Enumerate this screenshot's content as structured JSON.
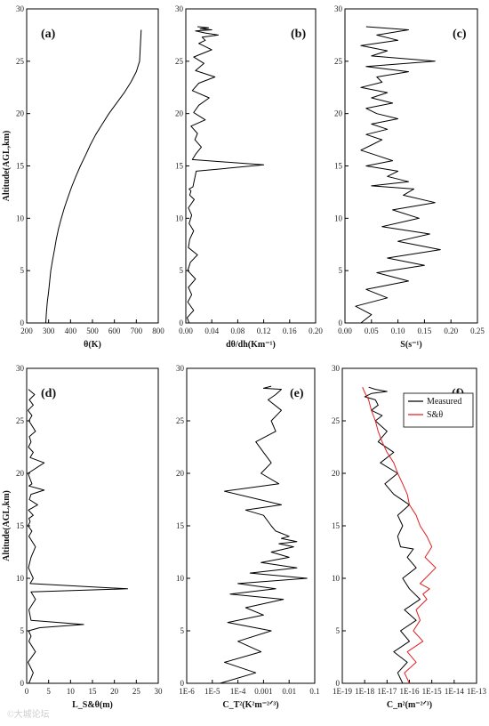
{
  "chart_data": [
    {
      "id": "a",
      "type": "line",
      "panel_label": "(a)",
      "xlabel": "θ(K)",
      "ylabel": "Altitude(AGL,km)",
      "xlim": [
        200,
        800
      ],
      "ylim": [
        0,
        30
      ],
      "xticks": [
        "200",
        "300",
        "400",
        "500",
        "600",
        "700",
        "800"
      ],
      "yticks": [
        "0",
        "5",
        "10",
        "15",
        "20",
        "25",
        "30"
      ],
      "series": [
        {
          "color": "#000000",
          "x": [
            287,
            290,
            294,
            300,
            305,
            310,
            318,
            327,
            335,
            345,
            358,
            372,
            388,
            405,
            424,
            445,
            468,
            490,
            515,
            545,
            575,
            610,
            645,
            675,
            700,
            715,
            722
          ],
          "y": [
            0,
            1,
            2,
            3,
            4,
            5,
            6,
            7,
            8,
            9,
            10,
            11,
            12,
            13,
            14,
            15,
            16,
            17,
            18,
            19,
            20,
            21,
            22,
            23,
            24,
            25,
            28
          ]
        }
      ]
    },
    {
      "id": "b",
      "type": "line",
      "panel_label": "(b)",
      "xlabel": "dθ/dh(Km⁻¹)",
      "ylabel": "",
      "xlim": [
        0,
        0.2
      ],
      "ylim": [
        0,
        30
      ],
      "xticks": [
        "0.00",
        "0.04",
        "0.08",
        "0.12",
        "0.16",
        "0.20"
      ],
      "yticks": [
        "0",
        "5",
        "10",
        "15",
        "20",
        "25",
        "30"
      ],
      "series": [
        {
          "color": "#000000",
          "x": [
            0.005,
            0.002,
            0.012,
            0.003,
            0.009,
            0.004,
            0.015,
            0.003,
            0.007,
            0.018,
            0.004,
            0.006,
            0.012,
            0.005,
            0.009,
            0.004,
            0.013,
            0.006,
            0.008,
            0.005,
            0.011,
            0.016,
            0.12,
            0.01,
            0.016,
            0.024,
            0.014,
            0.018,
            0.008,
            0.03,
            0.012,
            0.02,
            0.036,
            0.01,
            0.02,
            0.045,
            0.015,
            0.028,
            0.012,
            0.04,
            0.02,
            0.03,
            0.025,
            0.05,
            0.03,
            0.015,
            0.04,
            0.022,
            0.035,
            0.018
          ],
          "y": [
            0,
            0.5,
            1.2,
            2,
            2.7,
            3.4,
            4.2,
            5,
            5.8,
            6.5,
            7.2,
            8,
            8.8,
            9.5,
            10.3,
            11,
            11.8,
            12.2,
            12.6,
            12.8,
            13,
            14.5,
            15.1,
            15.6,
            16.2,
            16.8,
            17.5,
            18.1,
            18.8,
            19.4,
            20.1,
            20.8,
            21.5,
            22.2,
            22.9,
            23.5,
            24.1,
            24.8,
            25.4,
            26.1,
            26.7,
            27,
            27.3,
            27.5,
            27.7,
            27.9,
            28,
            28.1,
            28.2,
            28.3
          ]
        }
      ]
    },
    {
      "id": "c",
      "type": "line",
      "panel_label": "(c)",
      "xlabel": "S(s⁻¹)",
      "ylabel": "",
      "xlim": [
        0,
        0.25
      ],
      "ylim": [
        0,
        30
      ],
      "xticks": [
        "0.00",
        "0.05",
        "0.10",
        "0.15",
        "0.20",
        "0.25"
      ],
      "yticks": [
        "0",
        "5",
        "10",
        "15",
        "20",
        "25",
        "30"
      ],
      "series": [
        {
          "color": "#000000",
          "x": [
            0.03,
            0.05,
            0.02,
            0.08,
            0.04,
            0.12,
            0.06,
            0.15,
            0.08,
            0.18,
            0.1,
            0.16,
            0.07,
            0.14,
            0.09,
            0.17,
            0.11,
            0.13,
            0.05,
            0.12,
            0.08,
            0.1,
            0.04,
            0.09,
            0.06,
            0.03,
            0.05,
            0.07,
            0.04,
            0.08,
            0.05,
            0.1,
            0.06,
            0.04,
            0.09,
            0.05,
            0.08,
            0.03,
            0.07,
            0.06,
            0.12,
            0.04,
            0.17,
            0.05,
            0.08,
            0.03,
            0.1,
            0.06,
            0.12,
            0.04
          ],
          "y": [
            0,
            0.8,
            1.6,
            2.4,
            3.2,
            4,
            4.8,
            5.5,
            6.2,
            7,
            7.8,
            8.5,
            9.2,
            10,
            10.8,
            11.5,
            12.2,
            12.8,
            13.1,
            13.5,
            14,
            14.5,
            15,
            15.5,
            16,
            16.5,
            17,
            17.5,
            18,
            18.5,
            19,
            19.5,
            20,
            20.5,
            21,
            21.5,
            22,
            22.5,
            23,
            23.5,
            24,
            24.5,
            25,
            25.5,
            26,
            26.5,
            27,
            27.5,
            28,
            28.3
          ]
        }
      ]
    },
    {
      "id": "d",
      "type": "line",
      "panel_label": "(d)",
      "xlabel": "L_S&θ(m)",
      "ylabel": "Altitude(AGL,km)",
      "xlim": [
        0,
        30
      ],
      "ylim": [
        0,
        30
      ],
      "xticks": [
        "0",
        "5",
        "10",
        "15",
        "20",
        "25",
        "30"
      ],
      "yticks": [
        "0",
        "5",
        "10",
        "15",
        "20",
        "25",
        "30"
      ],
      "series": [
        {
          "color": "#000000",
          "x": [
            0.5,
            1.5,
            0.3,
            2,
            0.5,
            1,
            0.4,
            3,
            13,
            1,
            0.5,
            2,
            1,
            23,
            0.8,
            1.5,
            0.4,
            1,
            2,
            0.5,
            1.2,
            0.3,
            0.8,
            0.5,
            1.5,
            0.4,
            2.5,
            0.6,
            1,
            4,
            0.5,
            1.2,
            0.3,
            4,
            0.8,
            1.5,
            0.4,
            1,
            0.6,
            2,
            0.5,
            1.2,
            0.3,
            1.5,
            0.6,
            1.8,
            0.4
          ],
          "y": [
            0,
            1,
            2,
            3,
            4,
            4.5,
            5,
            5.3,
            5.6,
            6,
            7,
            8,
            8.7,
            9,
            9.5,
            10,
            11,
            12,
            13,
            14,
            14.5,
            15,
            15.4,
            15.7,
            16,
            16.5,
            17,
            17.5,
            18,
            18.4,
            18.8,
            19,
            20,
            21,
            21.5,
            22,
            22.5,
            23,
            23.5,
            24,
            25,
            25.5,
            26,
            26.5,
            27,
            27.5,
            28
          ]
        }
      ]
    },
    {
      "id": "e",
      "type": "line",
      "panel_label": "(e)",
      "xlabel": "C_T²(K²m⁻²ᐟ³)",
      "ylabel": "",
      "xscale": "log",
      "xlim": [
        1e-06,
        0.1
      ],
      "ylim": [
        0,
        30
      ],
      "xticks": [
        "1E-6",
        "1E-5",
        "1E-4",
        "0.001",
        "0.01",
        "0.1"
      ],
      "yticks": [
        "0",
        "5",
        "10",
        "15",
        "20",
        "25",
        "30"
      ],
      "series": [
        {
          "color": "#000000",
          "x": [
            2e-05,
            0.0005,
            3e-05,
            0.0008,
            0.0001,
            0.002,
            4e-05,
            0.001,
            0.0002,
            0.006,
            5e-05,
            0.003,
            0.0001,
            0.05,
            0.0003,
            0.02,
            0.0008,
            0.01,
            0.002,
            0.015,
            0.004,
            0.02,
            0.005,
            0.01,
            0.003,
            0.002,
            0.001,
            0.0002,
            0.005,
            3e-05,
            0.004,
            0.0008,
            0.002,
            0.001,
            0.0005,
            0.003,
            0.002,
            0.005,
            0.0015,
            0.003,
            0.005,
            0.001,
            0.002
          ],
          "y": [
            0,
            1,
            2,
            3,
            4,
            5,
            5.8,
            6.5,
            7.2,
            8,
            8.5,
            9,
            9.5,
            10,
            10.5,
            11,
            11.5,
            12,
            12.5,
            13,
            13.3,
            13.5,
            13.8,
            14,
            14.5,
            15,
            16,
            16.5,
            17,
            18.3,
            19,
            20,
            21,
            22,
            23,
            24,
            25,
            26,
            27,
            27.5,
            28,
            28.1,
            28.3
          ]
        }
      ]
    },
    {
      "id": "f",
      "type": "line",
      "panel_label": "(f)",
      "xlabel": "C_n²(m⁻²ᐟ³)",
      "ylabel": "",
      "xscale": "log",
      "xlim": [
        1e-19,
        1e-13
      ],
      "ylim": [
        0,
        30
      ],
      "xticks": [
        "1E-19",
        "1E-18",
        "1E-17",
        "1E-16",
        "1E-15",
        "1E-14",
        "1E-13"
      ],
      "yticks": [
        "0",
        "5",
        "10",
        "15",
        "20",
        "25",
        "30"
      ],
      "legend": {
        "position": "top-right"
      },
      "series": [
        {
          "name": "Measured",
          "color": "#000000",
          "x": [
            5e-17,
            3e-17,
            8e-17,
            2e-17,
            1e-16,
            4e-17,
            2e-16,
            6e-17,
            3e-16,
            1e-16,
            5e-17,
            2e-16,
            8e-17,
            1.5e-16,
            4e-17,
            3e-17,
            5e-17,
            3e-17,
            1e-16,
            2e-17,
            8e-18,
            3e-17,
            5e-18,
            2e-17,
            4e-18,
            1e-17,
            3e-18,
            6e-18,
            2e-18,
            4e-18,
            3e-18,
            1e-18,
            2e-18,
            1e-17,
            3e-18,
            1.5e-18
          ],
          "y": [
            0,
            1,
            2,
            3,
            4,
            5,
            6,
            7,
            8,
            9,
            10,
            11,
            12,
            12.8,
            13,
            14,
            15,
            16,
            17,
            18,
            19,
            20,
            21,
            22,
            23,
            24,
            25,
            25.5,
            26,
            26.5,
            27,
            27.3,
            27.6,
            27.8,
            28,
            28.2
          ]
        },
        {
          "name": "S&θ",
          "color": "#e02020",
          "x": [
            1e-16,
            6e-17,
            2e-16,
            8e-17,
            4e-16,
            1.5e-16,
            3e-16,
            2e-16,
            6e-16,
            4e-16,
            8e-16,
            3e-16,
            1.5e-15,
            5e-16,
            1e-15,
            6e-16,
            3e-16,
            2e-16,
            1e-16,
            8e-17,
            5e-17,
            3e-17,
            2e-17,
            1e-17,
            6e-18,
            4e-18,
            3e-18,
            2e-18,
            1.5e-18,
            1e-18,
            8e-19
          ],
          "y": [
            0,
            1,
            2,
            3,
            4,
            5,
            6,
            7,
            8,
            8.5,
            9,
            9.5,
            11,
            12,
            13,
            14,
            15,
            16,
            17,
            18,
            19,
            20,
            21,
            22,
            23,
            24,
            25,
            26,
            27,
            27.7,
            28.2
          ]
        }
      ]
    }
  ],
  "watermark": "©大城论坛"
}
